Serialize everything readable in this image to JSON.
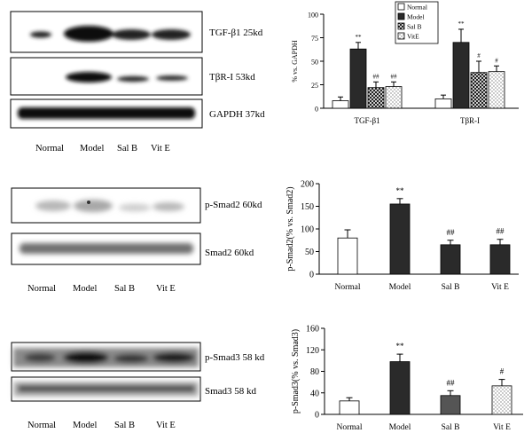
{
  "panel_a": {
    "blot_labels": [
      "TGF-β1 25kd",
      "TβR-I 53kd",
      "GAPDH 37kd"
    ],
    "lanes": [
      "Normal",
      "Model",
      "Sal B",
      "Vit E"
    ]
  },
  "panel_b": {
    "blot_labels": [
      "p-Smad2 60kd",
      "Smad2 60kd"
    ],
    "lanes": [
      "Normal",
      "Model",
      "Sal B",
      "Vit E"
    ]
  },
  "panel_c": {
    "blot_labels": [
      "p-Smad3 58 kd",
      "Smad3 58 kd"
    ],
    "lanes": [
      "Normal",
      "Model",
      "Sal B",
      "Vit E"
    ]
  },
  "chart_data": [
    {
      "type": "bar",
      "ylabel": "% vs. GAPDH",
      "ylim": [
        0,
        100
      ],
      "yticks": [
        0,
        25,
        50,
        75,
        100
      ],
      "categories": [
        "TGF-β1",
        "TβR-I"
      ],
      "legend_position": "top-right",
      "series": [
        {
          "name": "Normal",
          "fill": "#ffffff",
          "values": [
            8,
            10
          ],
          "errors": [
            4,
            4
          ]
        },
        {
          "name": "Model",
          "fill": "#2a2a2a",
          "values": [
            63,
            70
          ],
          "errors": [
            7,
            14
          ]
        },
        {
          "name": "Sal B",
          "fill": "#707070",
          "values": [
            22,
            38
          ],
          "errors": [
            6,
            12
          ]
        },
        {
          "name": "VitE",
          "fill": "#ffffff",
          "values": [
            23,
            39
          ],
          "errors": [
            5,
            6
          ]
        }
      ],
      "annotations": [
        {
          "category": "TGF-β1",
          "series": "Model",
          "text": "**"
        },
        {
          "category": "TGF-β1",
          "series": "Sal B",
          "text": "##"
        },
        {
          "category": "TGF-β1",
          "series": "VitE",
          "text": "##"
        },
        {
          "category": "TβR-I",
          "series": "Model",
          "text": "**"
        },
        {
          "category": "TβR-I",
          "series": "Sal B",
          "text": "#"
        },
        {
          "category": "TβR-I",
          "series": "VitE",
          "text": "#"
        }
      ]
    },
    {
      "type": "bar",
      "ylabel": "p-Smad2(% vs. Smad2)",
      "ylim": [
        0,
        200
      ],
      "yticks": [
        0,
        50,
        100,
        150,
        200
      ],
      "categories": [
        "Normal",
        "Model",
        "Sal B",
        "Vit E"
      ],
      "fills": [
        "#ffffff",
        "#2a2a2a",
        "#2a2a2a",
        "#2a2a2a"
      ],
      "values": [
        80,
        155,
        65,
        65
      ],
      "errors": [
        18,
        12,
        10,
        12
      ],
      "annotations": [
        "",
        "**",
        "##",
        "##"
      ]
    },
    {
      "type": "bar",
      "ylabel": "p-Smad3(% vs. Smad3)",
      "ylim": [
        0,
        160
      ],
      "yticks": [
        0,
        40,
        80,
        120,
        160
      ],
      "categories": [
        "Normal",
        "Model",
        "Sal B",
        "Vit E"
      ],
      "fills": [
        "#ffffff",
        "#2a2a2a",
        "#555555",
        "#ffffff"
      ],
      "values": [
        25,
        98,
        35,
        53
      ],
      "errors": [
        6,
        14,
        9,
        12
      ],
      "annotations": [
        "",
        "**",
        "##",
        "#"
      ]
    }
  ]
}
